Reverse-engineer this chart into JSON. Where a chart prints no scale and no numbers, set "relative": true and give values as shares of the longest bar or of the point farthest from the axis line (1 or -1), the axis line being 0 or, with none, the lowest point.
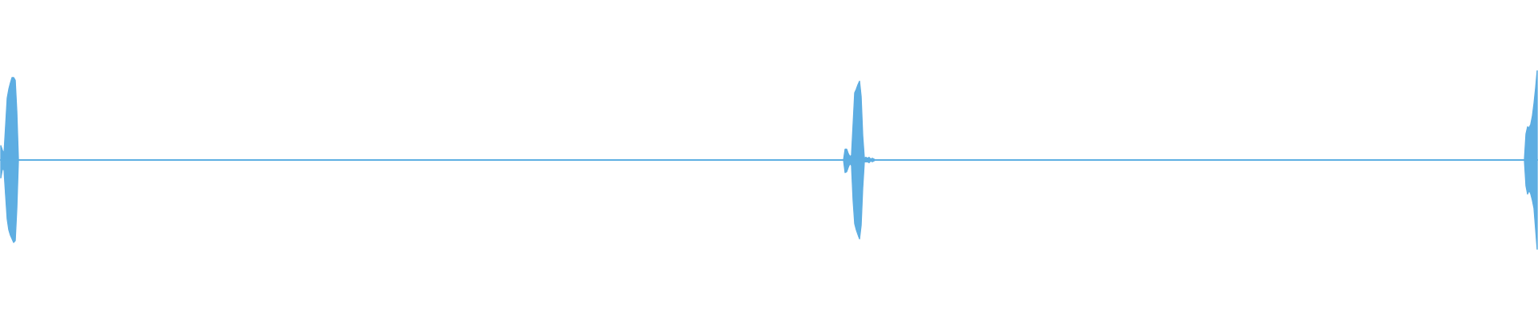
{
  "chart_data": {
    "type": "area",
    "relative": true,
    "ref_lines": [
      {
        "axis": "y",
        "value": 0,
        "color": "#5dade2"
      }
    ],
    "categories": [
      null,
      null,
      null,
      null,
      null,
      null,
      null,
      null,
      null,
      null,
      null,
      null,
      null,
      null,
      null,
      null,
      null,
      null,
      null,
      null,
      null,
      null,
      null,
      null,
      null,
      null,
      null,
      null,
      null,
      null,
      null,
      null,
      null,
      null,
      null,
      null,
      null,
      null,
      null,
      null,
      null,
      null,
      null,
      null,
      null,
      null,
      null,
      null,
      null,
      null,
      null,
      null,
      null,
      null,
      null,
      null,
      null,
      null,
      null,
      null,
      null,
      null,
      null,
      null,
      null,
      null,
      null,
      null,
      null,
      null,
      null,
      null,
      null,
      null,
      null,
      null,
      null,
      null,
      null,
      null,
      null,
      null,
      null,
      null,
      null,
      null,
      null,
      null,
      null,
      null,
      null,
      null,
      null,
      null,
      null,
      null,
      null,
      null,
      null,
      null,
      null,
      null,
      null,
      null,
      null,
      null,
      null,
      null,
      null,
      null,
      null,
      null,
      null,
      null,
      null,
      null,
      null,
      null,
      null,
      null,
      null,
      null,
      null,
      null,
      null,
      null,
      null,
      null,
      null,
      null,
      null,
      null,
      null,
      null,
      null,
      null,
      null,
      null,
      null,
      null,
      null,
      null,
      null,
      null,
      null,
      null,
      null,
      null,
      null,
      null,
      null,
      null,
      null,
      null,
      null,
      null,
      null,
      null,
      null,
      null,
      null,
      null,
      null,
      null,
      null,
      null,
      null,
      null,
      null,
      null,
      null,
      null,
      null,
      null,
      null,
      null,
      null,
      null,
      null,
      null,
      null,
      null,
      null,
      null,
      null,
      null,
      null,
      null,
      null,
      null,
      null,
      null,
      null,
      null,
      null,
      null,
      null,
      null,
      null,
      null,
      null,
      null,
      null,
      null,
      null,
      null,
      null,
      null,
      null,
      null,
      null,
      null,
      null,
      null,
      null,
      null,
      null,
      null,
      null,
      null,
      null,
      null,
      null,
      null,
      null,
      null,
      null,
      null,
      null,
      null,
      null,
      null,
      null,
      null,
      null,
      null,
      null,
      null,
      null,
      null,
      null,
      null,
      null,
      null,
      null,
      null,
      null,
      null,
      null,
      null,
      null,
      null,
      null,
      null,
      null,
      null,
      null,
      null,
      null,
      null,
      null,
      null,
      null,
      null,
      null,
      null,
      null,
      null,
      null,
      null,
      null,
      null,
      null,
      null,
      null,
      null,
      null,
      null,
      null,
      null,
      null,
      null,
      null,
      null,
      null,
      null,
      null,
      null,
      null,
      null,
      null,
      null,
      null,
      null,
      null,
      null,
      null,
      null,
      null,
      null,
      null,
      null,
      null,
      null,
      null,
      null,
      null,
      null,
      null,
      null,
      null,
      null,
      null,
      null,
      null,
      null,
      null,
      null,
      null,
      null,
      null,
      null,
      null,
      null,
      null,
      null,
      null,
      null,
      null,
      null,
      null,
      null,
      null,
      null,
      null,
      null,
      null,
      null,
      null,
      null,
      null,
      null,
      null,
      null,
      null,
      null,
      null,
      null,
      null,
      null,
      null,
      null,
      null,
      null,
      null,
      null,
      null,
      null,
      null,
      null,
      null,
      null,
      null,
      null,
      null,
      null,
      null,
      null,
      null,
      null,
      null,
      null,
      null,
      null,
      null,
      null,
      null,
      null,
      null,
      null,
      null,
      null,
      null,
      null,
      null,
      null,
      null,
      null,
      null,
      null,
      null,
      null,
      null,
      null,
      null,
      null,
      null,
      null,
      null,
      null,
      null,
      null,
      null,
      null,
      null,
      null,
      null,
      null,
      null,
      null,
      null,
      null,
      null,
      null,
      null,
      null,
      null,
      null,
      null,
      null,
      null,
      null,
      null,
      null,
      null,
      null,
      null,
      null,
      null,
      null,
      null,
      null,
      null,
      null,
      null,
      null,
      null,
      null,
      null,
      null,
      null,
      null,
      null,
      null,
      null,
      null,
      null,
      null,
      null,
      null,
      null,
      null,
      null,
      null,
      null,
      null,
      null,
      null,
      null,
      null,
      null,
      null,
      null,
      null,
      null,
      null,
      null,
      null,
      null,
      null,
      null,
      null,
      null,
      null,
      null,
      null,
      null,
      null,
      null,
      null,
      null,
      null,
      null,
      null,
      null,
      null,
      null,
      null,
      null,
      null,
      null,
      null,
      null,
      null,
      null,
      null,
      null,
      null,
      null,
      null,
      null,
      null,
      null,
      null,
      null,
      null,
      null,
      null,
      null,
      null,
      null,
      null,
      null,
      null,
      null,
      null,
      null,
      null,
      null,
      null,
      null,
      null,
      null,
      null,
      null,
      null,
      null,
      null,
      null,
      null,
      null,
      null,
      null,
      null,
      null,
      null,
      null,
      null,
      null,
      null,
      null,
      null,
      null,
      null,
      null,
      null,
      null,
      null,
      null,
      null,
      null,
      null,
      null,
      null,
      null,
      null,
      null,
      null,
      null,
      null,
      null,
      null,
      null,
      null,
      null,
      null,
      null,
      null,
      null,
      null,
      null,
      null,
      null,
      null,
      null,
      null,
      null,
      null,
      null,
      null,
      null,
      null,
      null,
      null,
      null,
      null,
      null,
      null,
      null,
      null,
      null,
      null,
      null,
      null,
      null,
      null,
      null,
      null,
      null,
      null,
      null,
      null,
      null,
      null,
      null,
      null,
      null,
      null,
      null,
      null,
      null,
      null,
      null,
      null,
      null,
      null,
      null,
      null,
      null,
      null,
      null,
      null,
      null,
      null,
      null,
      null,
      null,
      null,
      null,
      null,
      null,
      null,
      null,
      null,
      null,
      null,
      null,
      null,
      null,
      null,
      null,
      null,
      null,
      null,
      null,
      null,
      null,
      null,
      null,
      null,
      null,
      null,
      null,
      null,
      null,
      null,
      null,
      null,
      null,
      null,
      null,
      null,
      null,
      null,
      null,
      null,
      null,
      null,
      null,
      null,
      null,
      null,
      null,
      null,
      null,
      null,
      null,
      null,
      null,
      null,
      null,
      null,
      null,
      null,
      null,
      null,
      null,
      null,
      null,
      null,
      null,
      null,
      null,
      null,
      null,
      null,
      null,
      null,
      null,
      null,
      null,
      null,
      null,
      null,
      null,
      null,
      null,
      null,
      null,
      null,
      null,
      null,
      null,
      null,
      null,
      null,
      null,
      null,
      null,
      null,
      null,
      null,
      null,
      null,
      null,
      null,
      null,
      null,
      null,
      null,
      null,
      null,
      null,
      null,
      null,
      null,
      null,
      null,
      null,
      null,
      null,
      null,
      null,
      null,
      null,
      null,
      null,
      null,
      null,
      null,
      null,
      null,
      null,
      null,
      null,
      null,
      null,
      null,
      null,
      null,
      null,
      null,
      null,
      null,
      null,
      null,
      null,
      null,
      null,
      null,
      null,
      null,
      null,
      null,
      null,
      null,
      null,
      null,
      null,
      null,
      null,
      null,
      null,
      null,
      null,
      null,
      null,
      null,
      null,
      null,
      null,
      null,
      null,
      null,
      null,
      null,
      null,
      null,
      null,
      null,
      null,
      null,
      null,
      null,
      null,
      null,
      null,
      null,
      null,
      null,
      null,
      null,
      null,
      null,
      null,
      null,
      null,
      null,
      null,
      null,
      null,
      null,
      null,
      null,
      null,
      null,
      null,
      null,
      null,
      null,
      null,
      null,
      null,
      null,
      null,
      null,
      null,
      null,
      null,
      null,
      null,
      null,
      null,
      null,
      null,
      null,
      null,
      null,
      null,
      null,
      null,
      null,
      null,
      null,
      null,
      null,
      null,
      null,
      null,
      null,
      null,
      null,
      null,
      null,
      null,
      null,
      null,
      null,
      null,
      null,
      null,
      null,
      null,
      null,
      null,
      null,
      null,
      null,
      null,
      null,
      null,
      null,
      null,
      null,
      null,
      null,
      null,
      null,
      null,
      null,
      null,
      null,
      null,
      null,
      null,
      null,
      null,
      null,
      null,
      null,
      null,
      null,
      null,
      null,
      null,
      null,
      null,
      null,
      null,
      null,
      null,
      null,
      null,
      null,
      null,
      null,
      null,
      null,
      null,
      null,
      null,
      null,
      null,
      null,
      null,
      null,
      null,
      null,
      null,
      null,
      null,
      null,
      null,
      null,
      null,
      null,
      null,
      null,
      null,
      null,
      null,
      null,
      null,
      null,
      null,
      null,
      null,
      null,
      null,
      null,
      null,
      null,
      null,
      null,
      null,
      null,
      null,
      null,
      null,
      null
    ],
    "series": [
      {
        "color": "#5dade2",
        "values": [
          0.16,
          0.11,
          0.07,
          0.38,
          0.69,
          0.79,
          0.86,
          0.92,
          0.92,
          0.89,
          0.54,
          0,
          0,
          0,
          0,
          0,
          0,
          0,
          0,
          0,
          0,
          0,
          0,
          0,
          0,
          0,
          0,
          0,
          0,
          0,
          0,
          0,
          0,
          0,
          0,
          0,
          0,
          0,
          0,
          0,
          0,
          0,
          0,
          0,
          0,
          0,
          0,
          0,
          0,
          0,
          0,
          0,
          0,
          0,
          0,
          0,
          0,
          0,
          0,
          0,
          0,
          0,
          0,
          0,
          0,
          0,
          0,
          0,
          0,
          0,
          0,
          0,
          0,
          0,
          0,
          0,
          0,
          0,
          0,
          0,
          0,
          0,
          0,
          0,
          0,
          0,
          0,
          0,
          0,
          0,
          0,
          0,
          0,
          0,
          0,
          0,
          0,
          0,
          0,
          0,
          0,
          0,
          0,
          0,
          0,
          0,
          0,
          0,
          0,
          0,
          0,
          0,
          0,
          0,
          0,
          0,
          0,
          0,
          0,
          0,
          0,
          0,
          0,
          0,
          0,
          0,
          0,
          0,
          0,
          0,
          0,
          0,
          0,
          0,
          0,
          0,
          0,
          0,
          0,
          0,
          0,
          0,
          0,
          0,
          0,
          0,
          0,
          0,
          0,
          0,
          0,
          0,
          0,
          0,
          0,
          0,
          0,
          0,
          0,
          0,
          0,
          0,
          0,
          0,
          0,
          0,
          0,
          0,
          0,
          0,
          0,
          0,
          0,
          0,
          0,
          0,
          0,
          0,
          0,
          0,
          0,
          0,
          0,
          0,
          0,
          0,
          0,
          0,
          0,
          0,
          0,
          0,
          0,
          0,
          0,
          0,
          0,
          0,
          0,
          0,
          0,
          0,
          0,
          0,
          0,
          0,
          0,
          0,
          0,
          0,
          0,
          0,
          0,
          0,
          0,
          0,
          0,
          0,
          0,
          0,
          0,
          0,
          0,
          0,
          0,
          0,
          0,
          0,
          0,
          0,
          0,
          0,
          0,
          0,
          0,
          0,
          0,
          0,
          0,
          0,
          0,
          0,
          0,
          0,
          0,
          0,
          0,
          0,
          0,
          0,
          0,
          0,
          0,
          0,
          0,
          0,
          0,
          0,
          0,
          0,
          0,
          0,
          0,
          0,
          0,
          0,
          0,
          0,
          0,
          0,
          0,
          0,
          0,
          0,
          0,
          0,
          0,
          0,
          0,
          0,
          0,
          0,
          0,
          0,
          0,
          0,
          0,
          0,
          0,
          0,
          0,
          0,
          0,
          0,
          0,
          0,
          0,
          0,
          0,
          0,
          0,
          0,
          0,
          0,
          0,
          0,
          0,
          0,
          0,
          0,
          0,
          0,
          0,
          0,
          0,
          0,
          0,
          0,
          0,
          0,
          0,
          0,
          0,
          0,
          0,
          0,
          0,
          0,
          0,
          0,
          0,
          0,
          0,
          0,
          0,
          0,
          0,
          0,
          0,
          0,
          0,
          0,
          0,
          0,
          0,
          0,
          0,
          0,
          0,
          0,
          0,
          0,
          0,
          0,
          0,
          0,
          0,
          0,
          0,
          0,
          0,
          0,
          0,
          0,
          0,
          0,
          0,
          0,
          0,
          0,
          0,
          0,
          0,
          0,
          0,
          0,
          0,
          0,
          0,
          0,
          0,
          0,
          0,
          0,
          0,
          0,
          0,
          0,
          0,
          0,
          0,
          0,
          0,
          0,
          0,
          0,
          0,
          0,
          0,
          0,
          0,
          0,
          0,
          0,
          0,
          0,
          0,
          0,
          0,
          0,
          0,
          0,
          0,
          0,
          0,
          0,
          0,
          0,
          0,
          0,
          0,
          0,
          0,
          0,
          0,
          0,
          0,
          0,
          0,
          0,
          0,
          0,
          0,
          0,
          0,
          0,
          0,
          0,
          0,
          0,
          0,
          0,
          0,
          0,
          0,
          0,
          0,
          0,
          0,
          0,
          0,
          0,
          0,
          0,
          0,
          0,
          0,
          0,
          0,
          0,
          0,
          0,
          0,
          0,
          0,
          0,
          0,
          0,
          0,
          0,
          0,
          0,
          0,
          0,
          0,
          0,
          0,
          0,
          0,
          0,
          0,
          0,
          0,
          0,
          0,
          0,
          0,
          0,
          0,
          0,
          0,
          0,
          0,
          0,
          0,
          0,
          0,
          0,
          0,
          0,
          0,
          0,
          0,
          0,
          0,
          0,
          0,
          0,
          0,
          0,
          0,
          0,
          0,
          0,
          0,
          0,
          0,
          0,
          0,
          0,
          0,
          0,
          0,
          0,
          0,
          0,
          0,
          0.12,
          0.12,
          0.07,
          0.04,
          0.05,
          0.4,
          0.75,
          0.79,
          0.84,
          0.88,
          0.71,
          0.27,
          0.02,
          0.03,
          0.02,
          0.03,
          0.01,
          0.02,
          0.01,
          0,
          0,
          0,
          0,
          0,
          0,
          0,
          0,
          0,
          0,
          0,
          0,
          0,
          0,
          0,
          0,
          0,
          0,
          0,
          0,
          0,
          0,
          0,
          0,
          0,
          0,
          0,
          0,
          0,
          0,
          0,
          0,
          0,
          0,
          0,
          0,
          0,
          0,
          0,
          0,
          0,
          0,
          0,
          0,
          0,
          0,
          0,
          0,
          0,
          0,
          0,
          0,
          0,
          0,
          0,
          0,
          0,
          0,
          0,
          0,
          0,
          0,
          0,
          0,
          0,
          0,
          0,
          0,
          0,
          0,
          0,
          0,
          0,
          0,
          0,
          0,
          0,
          0,
          0,
          0,
          0,
          0,
          0,
          0,
          0,
          0,
          0,
          0,
          0,
          0,
          0,
          0,
          0,
          0,
          0,
          0,
          0,
          0,
          0,
          0,
          0,
          0,
          0,
          0,
          0,
          0,
          0,
          0,
          0,
          0,
          0,
          0,
          0,
          0,
          0,
          0,
          0,
          0,
          0,
          0,
          0,
          0,
          0,
          0,
          0,
          0,
          0,
          0,
          0,
          0,
          0,
          0,
          0,
          0,
          0,
          0,
          0,
          0,
          0,
          0,
          0,
          0,
          0,
          0,
          0,
          0,
          0,
          0,
          0,
          0,
          0,
          0,
          0,
          0,
          0,
          0,
          0,
          0,
          0,
          0,
          0,
          0,
          0,
          0,
          0,
          0,
          0,
          0,
          0,
          0,
          0,
          0,
          0,
          0,
          0,
          0,
          0,
          0,
          0,
          0,
          0,
          0,
          0,
          0,
          0,
          0,
          0,
          0,
          0,
          0,
          0,
          0,
          0,
          0,
          0,
          0,
          0,
          0,
          0,
          0,
          0,
          0,
          0,
          0,
          0,
          0,
          0,
          0,
          0,
          0,
          0,
          0,
          0,
          0,
          0,
          0,
          0,
          0,
          0,
          0,
          0,
          0,
          0,
          0,
          0,
          0,
          0,
          0,
          0,
          0,
          0,
          0,
          0,
          0,
          0,
          0,
          0,
          0,
          0,
          0,
          0,
          0,
          0,
          0,
          0,
          0,
          0,
          0,
          0,
          0,
          0,
          0,
          0,
          0,
          0,
          0,
          0,
          0,
          0,
          0,
          0,
          0,
          0,
          0,
          0,
          0,
          0,
          0,
          0,
          0,
          0,
          0,
          0,
          0,
          0,
          0,
          0,
          0,
          0,
          0,
          0,
          0,
          0,
          0,
          0,
          0,
          0,
          0,
          0,
          0,
          0,
          0,
          0,
          0,
          0,
          0,
          0,
          0,
          0,
          0,
          0,
          0,
          0,
          0,
          0,
          0,
          0,
          0,
          0,
          0,
          0,
          0,
          0,
          0,
          0,
          0,
          0,
          0,
          0,
          0,
          0,
          0,
          0,
          0,
          0,
          0,
          0,
          0,
          0,
          0,
          0,
          0,
          0,
          0,
          0,
          0,
          0,
          0,
          0,
          0,
          0,
          0,
          0,
          0,
          0,
          0,
          0,
          0,
          0,
          0,
          0,
          0,
          0,
          0,
          0,
          0,
          0,
          0,
          0,
          0,
          0,
          0,
          0,
          0,
          0,
          0,
          0,
          0,
          0,
          0,
          0,
          0,
          0,
          0,
          0,
          0,
          0,
          0,
          0,
          0,
          0,
          0,
          0,
          0,
          0,
          0,
          0,
          0,
          0,
          0,
          0,
          0,
          0,
          0,
          0,
          0,
          0,
          0,
          0,
          0,
          0,
          0,
          0,
          0,
          0,
          0,
          0.29,
          0.37,
          0.36,
          0.4,
          0.49,
          0.63,
          0.8,
          1
        ]
      },
      {
        "color": "#5eaee2",
        "values": [
          -0.2,
          -0.1,
          -0.11,
          -0.39,
          -0.66,
          -0.78,
          -0.84,
          -0.88,
          -0.92,
          -0.9,
          -0.54,
          0,
          0,
          0,
          0,
          0,
          0,
          0,
          0,
          0,
          0,
          0,
          0,
          0,
          0,
          0,
          0,
          0,
          0,
          0,
          0,
          0,
          0,
          0,
          0,
          0,
          0,
          0,
          0,
          0,
          0,
          0,
          0,
          0,
          0,
          0,
          0,
          0,
          0,
          0,
          0,
          0,
          0,
          0,
          0,
          0,
          0,
          0,
          0,
          0,
          0,
          0,
          0,
          0,
          0,
          0,
          0,
          0,
          0,
          0,
          0,
          0,
          0,
          0,
          0,
          0,
          0,
          0,
          0,
          0,
          0,
          0,
          0,
          0,
          0,
          0,
          0,
          0,
          0,
          0,
          0,
          0,
          0,
          0,
          0,
          0,
          0,
          0,
          0,
          0,
          0,
          0,
          0,
          0,
          0,
          0,
          0,
          0,
          0,
          0,
          0,
          0,
          0,
          0,
          0,
          0,
          0,
          0,
          0,
          0,
          0,
          0,
          0,
          0,
          0,
          0,
          0,
          0,
          0,
          0,
          0,
          0,
          0,
          0,
          0,
          0,
          0,
          0,
          0,
          0,
          0,
          0,
          0,
          0,
          0,
          0,
          0,
          0,
          0,
          0,
          0,
          0,
          0,
          0,
          0,
          0,
          0,
          0,
          0,
          0,
          0,
          0,
          0,
          0,
          0,
          0,
          0,
          0,
          0,
          0,
          0,
          0,
          0,
          0,
          0,
          0,
          0,
          0,
          0,
          0,
          0,
          0,
          0,
          0,
          0,
          0,
          0,
          0,
          0,
          0,
          0,
          0,
          0,
          0,
          0,
          0,
          0,
          0,
          0,
          0,
          0,
          0,
          0,
          0,
          0,
          0,
          0,
          0,
          0,
          0,
          0,
          0,
          0,
          0,
          0,
          0,
          0,
          0,
          0,
          0,
          0,
          0,
          0,
          0,
          0,
          0,
          0,
          0,
          0,
          0,
          0,
          0,
          0,
          0,
          0,
          0,
          0,
          0,
          0,
          0,
          0,
          0,
          0,
          0,
          0,
          0,
          0,
          0,
          0,
          0,
          0,
          0,
          0,
          0,
          0,
          0,
          0,
          0,
          0,
          0,
          0,
          0,
          0,
          0,
          0,
          0,
          0,
          0,
          0,
          0,
          0,
          0,
          0,
          0,
          0,
          0,
          0,
          0,
          0,
          0,
          0,
          0,
          0,
          0,
          0,
          0,
          0,
          0,
          0,
          0,
          0,
          0,
          0,
          0,
          0,
          0,
          0,
          0,
          0,
          0,
          0,
          0,
          0,
          0,
          0,
          0,
          0,
          0,
          0,
          0,
          0,
          0,
          0,
          0,
          0,
          0,
          0,
          0,
          0,
          0,
          0,
          0,
          0,
          0,
          0,
          0,
          0,
          0,
          0,
          0,
          0,
          0,
          0,
          0,
          0,
          0,
          0,
          0,
          0,
          0,
          0,
          0,
          0,
          0,
          0,
          0,
          0,
          0,
          0,
          0,
          0,
          0,
          0,
          0,
          0,
          0,
          0,
          0,
          0,
          0,
          0,
          0,
          0,
          0,
          0,
          0,
          0,
          0,
          0,
          0,
          0,
          0,
          0,
          0,
          0,
          0,
          0,
          0,
          0,
          0,
          0,
          0,
          0,
          0,
          0,
          0,
          0,
          0,
          0,
          0,
          0,
          0,
          0,
          0,
          0,
          0,
          0,
          0,
          0,
          0,
          0,
          0,
          0,
          0,
          0,
          0,
          0,
          0,
          0,
          0,
          0,
          0,
          0,
          0,
          0,
          0,
          0,
          0,
          0,
          0,
          0,
          0,
          0,
          0,
          0,
          0,
          0,
          0,
          0,
          0,
          0,
          0,
          0,
          0,
          0,
          0,
          0,
          0,
          0,
          0,
          0,
          0,
          0,
          0,
          0,
          0,
          0,
          0,
          0,
          0,
          0,
          0,
          0,
          0,
          0,
          0,
          0,
          0,
          0,
          0,
          0,
          0,
          0,
          0,
          0,
          0,
          0,
          0,
          0,
          0,
          0,
          0,
          0,
          0,
          0,
          0,
          0,
          0,
          0,
          0,
          0,
          0,
          0,
          0,
          0,
          0,
          0,
          0,
          0,
          0,
          0,
          0,
          0,
          0,
          0,
          0,
          0,
          0,
          0,
          0,
          0,
          0,
          0,
          0,
          0,
          0,
          0,
          0,
          0,
          0,
          0,
          0,
          0,
          0,
          0,
          0,
          0,
          0,
          0,
          0,
          0,
          0,
          0,
          0,
          0,
          0,
          0,
          -0.14,
          -0.13,
          -0.08,
          -0.04,
          -0.06,
          -0.45,
          -0.71,
          -0.78,
          -0.83,
          -0.88,
          -0.73,
          -0.31,
          -0.02,
          -0.02,
          -0.02,
          -0.03,
          -0.01,
          -0.02,
          -0.01,
          0,
          0,
          0,
          0,
          0,
          0,
          0,
          0,
          0,
          0,
          0,
          0,
          0,
          0,
          0,
          0,
          0,
          0,
          0,
          0,
          0,
          0,
          0,
          0,
          0,
          0,
          0,
          0,
          0,
          0,
          0,
          0,
          0,
          0,
          0,
          0,
          0,
          0,
          0,
          0,
          0,
          0,
          0,
          0,
          0,
          0,
          0,
          0,
          0,
          0,
          0,
          0,
          0,
          0,
          0,
          0,
          0,
          0,
          0,
          0,
          0,
          0,
          0,
          0,
          0,
          0,
          0,
          0,
          0,
          0,
          0,
          0,
          0,
          0,
          0,
          0,
          0,
          0,
          0,
          0,
          0,
          0,
          0,
          0,
          0,
          0,
          0,
          0,
          0,
          0,
          0,
          0,
          0,
          0,
          0,
          0,
          0,
          0,
          0,
          0,
          0,
          0,
          0,
          0,
          0,
          0,
          0,
          0,
          0,
          0,
          0,
          0,
          0,
          0,
          0,
          0,
          0,
          0,
          0,
          0,
          0,
          0,
          0,
          0,
          0,
          0,
          0,
          0,
          0,
          0,
          0,
          0,
          0,
          0,
          0,
          0,
          0,
          0,
          0,
          0,
          0,
          0,
          0,
          0,
          0,
          0,
          0,
          0,
          0,
          0,
          0,
          0,
          0,
          0,
          0,
          0,
          0,
          0,
          0,
          0,
          0,
          0,
          0,
          0,
          0,
          0,
          0,
          0,
          0,
          0,
          0,
          0,
          0,
          0,
          0,
          0,
          0,
          0,
          0,
          0,
          0,
          0,
          0,
          0,
          0,
          0,
          0,
          0,
          0,
          0,
          0,
          0,
          0,
          0,
          0,
          0,
          0,
          0,
          0,
          0,
          0,
          0,
          0,
          0,
          0,
          0,
          0,
          0,
          0,
          0,
          0,
          0,
          0,
          0,
          0,
          0,
          0,
          0,
          0,
          0,
          0,
          0,
          0,
          0,
          0,
          0,
          0,
          0,
          0,
          0,
          0,
          0,
          0,
          0,
          0,
          0,
          0,
          0,
          0,
          0,
          0,
          0,
          0,
          0,
          0,
          0,
          0,
          0,
          0,
          0,
          0,
          0,
          0,
          0,
          0,
          0,
          0,
          0,
          0,
          0,
          0,
          0,
          0,
          0,
          0,
          0,
          0,
          0,
          0,
          0,
          0,
          0,
          0,
          0,
          0,
          0,
          0,
          0,
          0,
          0,
          0,
          0,
          0,
          0,
          0,
          0,
          0,
          0,
          0,
          0,
          0,
          0,
          0,
          0,
          0,
          0,
          0,
          0,
          0,
          0,
          0,
          0,
          0,
          0,
          0,
          0,
          0,
          0,
          0,
          0,
          0,
          0,
          0,
          0,
          0,
          0,
          0,
          0,
          0,
          0,
          0,
          0,
          0,
          0,
          0,
          0,
          0,
          0,
          0,
          0,
          0,
          0,
          0,
          0,
          0,
          0,
          0,
          0,
          0,
          0,
          0,
          0,
          0,
          0,
          0,
          0,
          0,
          0,
          0,
          0,
          0,
          0,
          0,
          0,
          0,
          0,
          0,
          0,
          0,
          0,
          0,
          0,
          0,
          0,
          0,
          0,
          0,
          0,
          0,
          0,
          0,
          0,
          0,
          0,
          0,
          0,
          0,
          0,
          0,
          0,
          0,
          0,
          0,
          0,
          0,
          0,
          0,
          0,
          0,
          0,
          0,
          0,
          0,
          0,
          0,
          0,
          0,
          0,
          0,
          0,
          0,
          0,
          0,
          0,
          0,
          0,
          -0.29,
          -0.38,
          -0.34,
          -0.38,
          -0.45,
          -0.54,
          -0.77,
          -1
        ]
      }
    ]
  }
}
